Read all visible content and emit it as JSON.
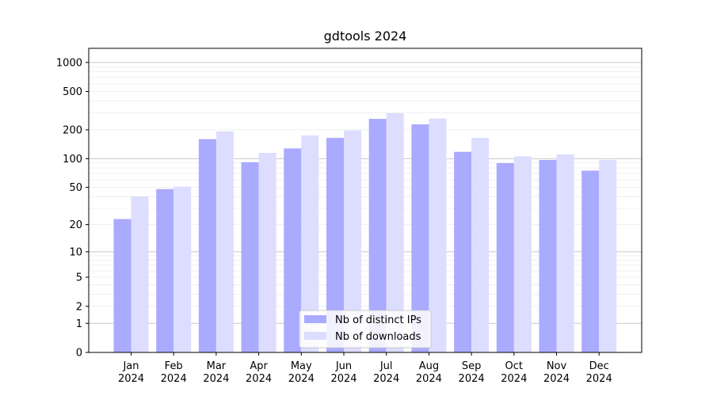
{
  "chart_data": {
    "type": "bar",
    "title": "gdtools 2024",
    "xlabel": "",
    "ylabel": "",
    "yscale": "log (value + 1)",
    "ylim": [
      0,
      1400
    ],
    "yticks": [
      "0",
      "1",
      "2",
      "5",
      "10",
      "20",
      "50",
      "100",
      "200",
      "500",
      "1000"
    ],
    "categories": [
      [
        "Jan",
        "2024"
      ],
      [
        "Feb",
        "2024"
      ],
      [
        "Mar",
        "2024"
      ],
      [
        "Apr",
        "2024"
      ],
      [
        "May",
        "2024"
      ],
      [
        "Jun",
        "2024"
      ],
      [
        "Jul",
        "2024"
      ],
      [
        "Aug",
        "2024"
      ],
      [
        "Sep",
        "2024"
      ],
      [
        "Oct",
        "2024"
      ],
      [
        "Nov",
        "2024"
      ],
      [
        "Dec",
        "2024"
      ]
    ],
    "series": [
      {
        "name": "Nb of distinct IPs",
        "color": "#aaaaff",
        "values": [
          23,
          48,
          160,
          92,
          128,
          165,
          260,
          228,
          118,
          90,
          97,
          75
        ]
      },
      {
        "name": "Nb of downloads",
        "color": "#ddddff",
        "values": [
          40,
          51,
          193,
          115,
          175,
          197,
          298,
          262,
          165,
          106,
          111,
          97
        ]
      }
    ],
    "legend_position": "bottom-center",
    "grid": true
  }
}
